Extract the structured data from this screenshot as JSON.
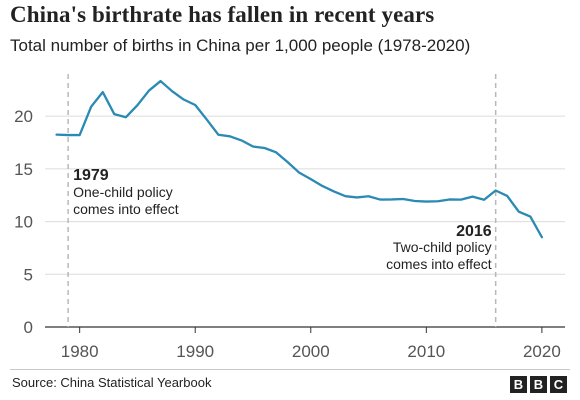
{
  "title": "China's birthrate has fallen in recent years",
  "subtitle": "Total number of births in China per 1,000 people (1978-2020)",
  "source": "Source: China Statistical Yearbook",
  "logo": [
    "B",
    "B",
    "C"
  ],
  "colors": {
    "line": "#2a8ab3",
    "grid": "#dcdcdc",
    "axis": "#333333",
    "ref": "#b8b8b8",
    "text": "#222222"
  },
  "annotations": [
    {
      "year_label": "1979",
      "text_lines": [
        "One-child policy",
        "comes into effect"
      ],
      "x": 1979
    },
    {
      "year_label": "2016",
      "text_lines": [
        "Two-child policy",
        "comes into effect"
      ],
      "x": 2016
    }
  ],
  "chart_data": {
    "type": "line",
    "title": "China's birthrate has fallen in recent years",
    "subtitle": "Total number of births in China per 1,000 people (1978-2020)",
    "xlabel": "",
    "ylabel": "",
    "xlim": [
      1977,
      2022
    ],
    "ylim": [
      0,
      24
    ],
    "xticks": [
      1980,
      1990,
      2000,
      2010,
      2020
    ],
    "yticks": [
      0,
      5,
      10,
      15,
      20
    ],
    "grid": true,
    "x": [
      1978,
      1979,
      1980,
      1981,
      1982,
      1983,
      1984,
      1985,
      1986,
      1987,
      1988,
      1989,
      1990,
      1991,
      1992,
      1993,
      1994,
      1995,
      1996,
      1997,
      1998,
      1999,
      2000,
      2001,
      2002,
      2003,
      2004,
      2005,
      2006,
      2007,
      2008,
      2009,
      2010,
      2011,
      2012,
      2013,
      2014,
      2015,
      2016,
      2017,
      2018,
      2019,
      2020
    ],
    "series": [
      {
        "values": [
          18.25,
          18.21,
          18.21,
          20.91,
          22.28,
          20.19,
          19.9,
          21.04,
          22.43,
          23.33,
          22.37,
          21.58,
          21.06,
          19.68,
          18.24,
          18.09,
          17.7,
          17.12,
          16.98,
          16.57,
          15.64,
          14.64,
          14.03,
          13.38,
          12.86,
          12.41,
          12.29,
          12.4,
          12.09,
          12.1,
          12.14,
          11.95,
          11.9,
          11.93,
          12.1,
          12.08,
          12.37,
          12.07,
          12.95,
          12.43,
          10.94,
          10.48,
          8.52
        ]
      }
    ]
  }
}
